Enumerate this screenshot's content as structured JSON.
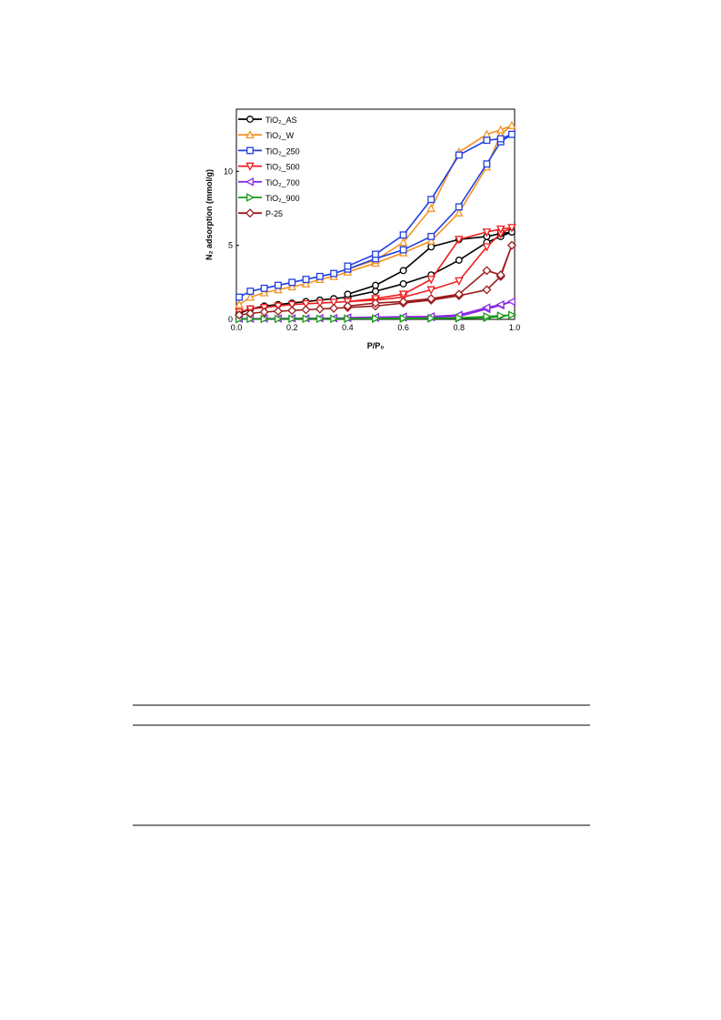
{
  "chart_data": {
    "type": "line",
    "x_label": "P/P₀",
    "y_label": "N₂ adsorption (mmol/g)",
    "x": [
      0.01,
      0.05,
      0.1,
      0.15,
      0.2,
      0.25,
      0.3,
      0.35,
      0.4,
      0.5,
      0.6,
      0.7,
      0.8,
      0.9,
      0.95,
      0.99,
      0.95,
      0.9,
      0.8,
      0.7,
      0.6,
      0.5,
      0.4
    ],
    "xlim": [
      0,
      1
    ],
    "xticks": [
      {
        "value": 0,
        "label": "0.0"
      },
      0.2,
      0.4,
      0.6,
      0.8,
      {
        "value": 1,
        "label": "1.0"
      }
    ],
    "ylim": [
      0,
      14.2
    ],
    "yticks": [
      0,
      5,
      10
    ],
    "legend": "upper left",
    "series": [
      {
        "name": "TiO₂_AS",
        "color": "#000000",
        "marker": "circle",
        "values": [
          0.4,
          0.7,
          0.9,
          1.0,
          1.1,
          1.2,
          1.3,
          1.4,
          1.5,
          1.9,
          2.4,
          3.0,
          4.0,
          5.2,
          5.6,
          5.9,
          5.8,
          5.6,
          5.4,
          4.9,
          3.3,
          2.3,
          1.7
        ]
      },
      {
        "name": "TiO₂_W",
        "color": "#f39325",
        "marker": "triangle-up",
        "values": [
          1.0,
          1.5,
          1.8,
          2.0,
          2.2,
          2.4,
          2.7,
          2.9,
          3.2,
          3.8,
          4.5,
          5.3,
          7.2,
          10.3,
          12.5,
          13.1,
          12.8,
          12.5,
          11.3,
          7.5,
          5.2,
          4.0,
          3.4
        ]
      },
      {
        "name": "TiO₂_250",
        "color": "#1f3fe0",
        "marker": "square",
        "values": [
          1.5,
          1.9,
          2.1,
          2.3,
          2.5,
          2.7,
          2.9,
          3.1,
          3.4,
          4.1,
          4.7,
          5.6,
          7.6,
          10.5,
          12.0,
          12.5,
          12.2,
          12.1,
          11.1,
          8.1,
          5.7,
          4.4,
          3.6
        ]
      },
      {
        "name": "TiO₂_500",
        "color": "#ee1c1c",
        "marker": "triangle-down",
        "values": [
          0.5,
          0.7,
          0.8,
          0.9,
          1.0,
          1.05,
          1.1,
          1.15,
          1.2,
          1.3,
          1.5,
          2.0,
          2.6,
          4.9,
          5.8,
          6.2,
          6.1,
          5.9,
          5.4,
          2.7,
          1.7,
          1.4,
          1.2
        ]
      },
      {
        "name": "TiO₂_700",
        "color": "#8a2be2",
        "marker": "triangle-left",
        "values": [
          0.05,
          0.05,
          0.06,
          0.06,
          0.07,
          0.07,
          0.08,
          0.08,
          0.1,
          0.12,
          0.13,
          0.15,
          0.2,
          0.7,
          0.95,
          1.2,
          1.0,
          0.8,
          0.3,
          0.2,
          0.18,
          0.15,
          0.12
        ]
      },
      {
        "name": "TiO₂_900",
        "color": "#1a9a1a",
        "marker": "triangle-right",
        "values": [
          0.02,
          0.03,
          0.03,
          0.03,
          0.04,
          0.04,
          0.04,
          0.04,
          0.05,
          0.05,
          0.05,
          0.06,
          0.07,
          0.1,
          0.2,
          0.3,
          0.25,
          0.2,
          0.1,
          0.08,
          0.07,
          0.06,
          0.05
        ]
      },
      {
        "name": "P-25",
        "color": "#9b1c1c",
        "marker": "diamond",
        "values": [
          0.3,
          0.4,
          0.5,
          0.55,
          0.6,
          0.65,
          0.7,
          0.75,
          0.8,
          0.9,
          1.1,
          1.3,
          1.6,
          2.0,
          2.9,
          5.0,
          3.0,
          3.3,
          1.7,
          1.4,
          1.2,
          1.1,
          0.9
        ]
      }
    ]
  }
}
